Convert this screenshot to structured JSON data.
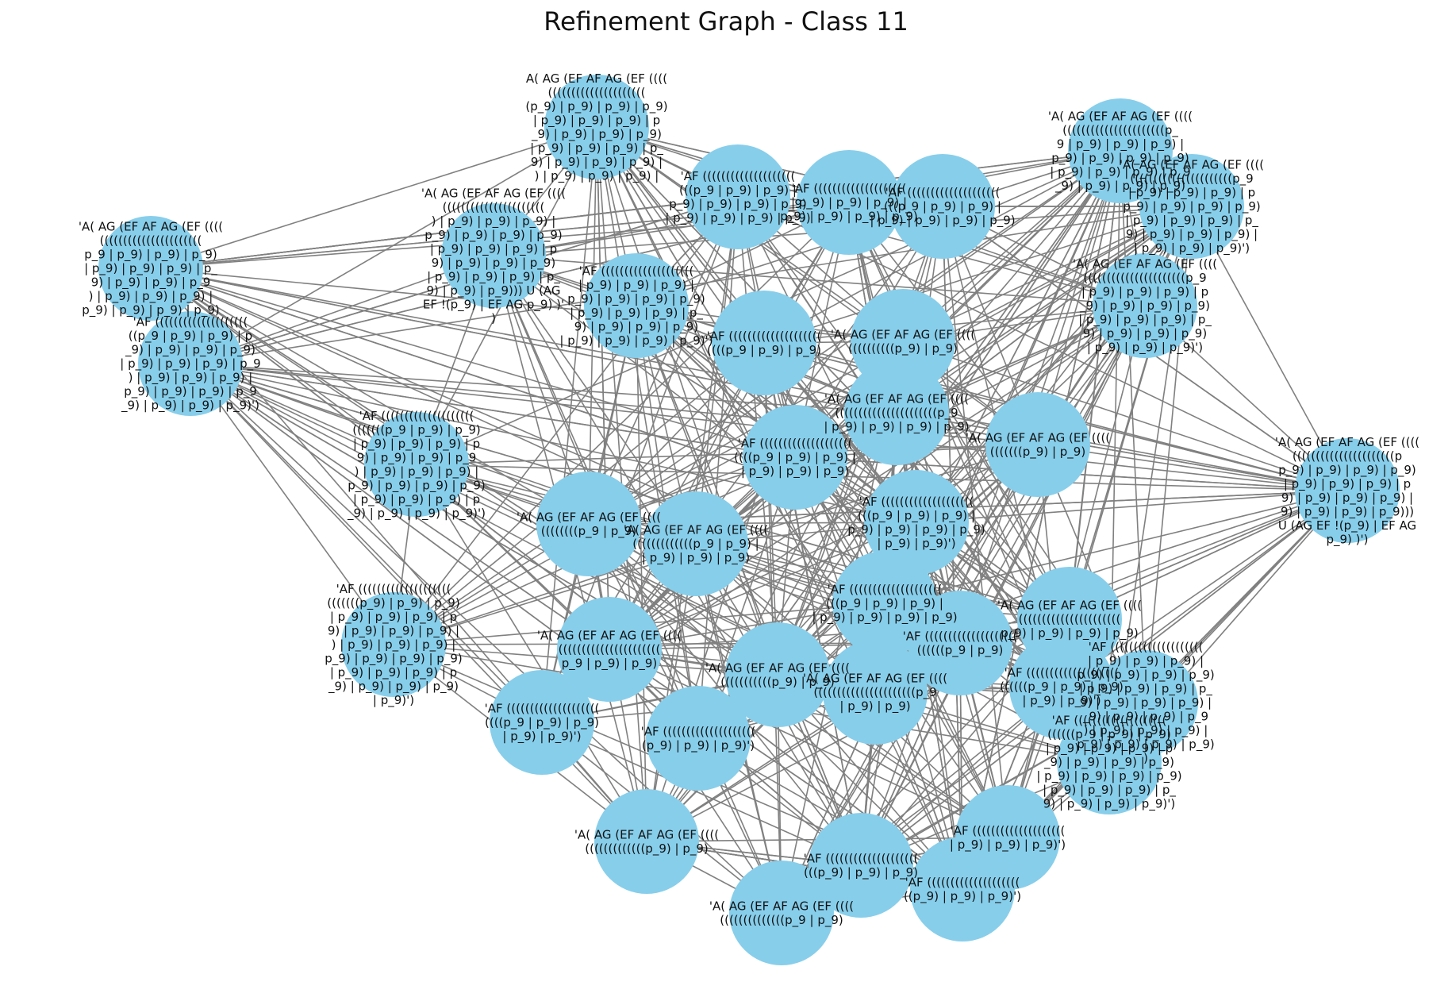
{
  "title": "Refinement Graph - Class 11",
  "colors": {
    "node": "#87ceeb",
    "edge": "#808080",
    "text": "#111111"
  },
  "nodes": [
    {
      "id": "n0",
      "label": "A( AG (EF AF AG (EF ((((\n(((((((((((((((((((((\n(p_9) | p_9) | p_9) | p_9)\n| p_9) | p_9) | p_9) | p\n_9) | p_9) | p_9) | p_9)\n| p_9) | p_9) | p_9) | p_\n9) | p_9) | p_9) | p_9) |\n) | p_9) | p_9) | p_9) |"
    },
    {
      "id": "n1",
      "label": "'A( AG (EF AF AG (EF ((((\n((((((((((((((((((((((p_\n9 | p_9) | p_9) | p_9) |\np_9) | p_9) | p_9) | p_9)\n| p_9) | p_9) | p_9) | p_9\n_9) | p_9) | p_9) | p_9)"
    },
    {
      "id": "n2",
      "label": "'A( AG (EF AF AG (EF ((((\n((((((((((((((((((((((\np_9 | p_9) | p_9) | p_9)\n| p_9) | p_9) | p_9) | p_\n9) | p_9) | p_9) | p_9\n) | p_9) | p_9) | p_9) |\np_9) | p_9) | p_9) | p_9)"
    },
    {
      "id": "n3",
      "label": "'A( AG (EF AF AG (EF ((((\n((((((((((((((((((((((\n) | p_9) | p_9) | p_9) |\np_9) | p_9) | p_9) | p_9)\n| p_9) | p_9) | p_9) | p\n9) | p_9) | p_9) | p_9)\n| p_9) | p_9) | p_9) | p_\n9) | p_9) | p_9))) U (AG\nEF !(p_9) | EF AG p_9) )'\n)"
    },
    {
      "id": "n4",
      "label": "'AF ((((((((((((((((((((\n((p_9 | p_9) | p_9) | p\n_9) | p_9) | p_9) | p_9)\n| p_9) | p_9) | p_9) | p_9\n) | p_9) | p_9) | p_9) |\np_9) | p_9) | p_9) | p_9\n_9) | p_9) | p_9) | p_9)')"
    },
    {
      "id": "n5",
      "label": "'A( AG (EF AF AG (EF ((((\n((((((((((((((((((((((p\np_9) | p_9) | p_9) | p_9)\n| p_9) | p_9) | p_9) | p\n9) | p_9) | p_9) | p_9) |\n9) | p_9) | p_9) | p_9)))\nU (AG EF !(p_9) | EF AG\np_9) )')"
    },
    {
      "id": "n6",
      "label": "'A( AG (EF AF AG (EF ((((\n((((((((((((((((((((((p_9\n| p_9) | p_9) | p_9) | p\np_9) | p_9) | p_9) | p_9)\n| p_9) | p_9) | p_9) | p_\n9) | p_9) | p_9) | p_9) |\n| p_9) | p_9) | p_9)')"
    },
    {
      "id": "n7",
      "label": "'AF ((((((((((((((((((((\n(((((((p_9) | p_9) | p_9)\n| p_9) | p_9) | p_9) | p\n9) | p_9) | p_9) | p_9) |\n) | p_9) | p_9) | p_9) |\np_9) | p_9) | p_9) | p_9)\n| p_9) | p_9) | p_9) | p\n_9) | p_9) | p_9) | p_9)\n| p_9)')"
    },
    {
      "id": "n8",
      "label": "'AF ((((((((((((((((((((\n| p_9) | p_9) | p_9) |\np_9) | p_9) | p_9) | p_9)\n| p_9) | p_9) | p_9) | p_\n9) | p_9) | p_9) | p_9) |\n_9) | p_9) | p_9) | p_9\n) | p_9) | p_9) | p_9) |\np_9) | p_9) | p_9) | p_9)\n)"
    },
    {
      "id": "n9",
      "label": "'AF ((((((((((((((((((((\n(((((((p_9 | p_9) | p_9)\n| p_9) | p_9) | p_9) | p\n9) | p_9) | p_9) | p_9\n) | p_9) | p_9) | p_9) |\np_9) | p_9) | p_9) | p_9)\n| p_9) | p_9) | p_9) | p\n_9) | p_9) | p_9) | p_9)')"
    },
    {
      "id": "n10",
      "label": "'AF ((((((((((((((((((((\n| p_9) | p_9) | p_9) |\np_9) | p_9) | p_9) | p_9)\n| p_9) | p_9) | p_9) | p_\n9) | p_9) | p_9) | p_9)\n| p_9) | p_9) | p_9) | p_9)')"
    },
    {
      "id": "n11",
      "label": "'AF ((((((((((((((((((((\n((((((p_9 | p_9) | p_9)\n| p_9) | p_9) | p_9) | p\n_9) | p_9) | p_9) | p_9)\n| p_9) | p_9) | p_9) | p_9)\n| p_9) | p_9) | p_9) | p_\n9) | p_9) | p_9) | p_9)')"
    },
    {
      "id": "n12",
      "label": "'A( AG (EF AF AG (EF ((((\n((((((((((((((((((((((p_9\n| p_9) | p_9) | p_9) | p\n_9) | p_9) | p_9) | p_9)\n| p_9) | p_9) | p_9) | p_\n9) | p_9) | p_9) | p_9)\n| p_9) | p_9) | p_9)')"
    },
    {
      "id": "n13",
      "label": "'AF ((((((((((((((((((((\n(((p_9 | p_9) | p_9) |\np_9) | p_9) | p_9) | p_9)\n| p_9) | p_9) | p_9) | p_9)"
    },
    {
      "id": "n14",
      "label": "'AF ((((((((((((((((((((\n| p_9) | p_9) | p_9) |\np_9) | p_9) | p_9) | p_9)"
    },
    {
      "id": "n15",
      "label": "'AF ((((((((((((((((((((\n(((p_9 | p_9) | p_9) |\n| p_9) | p_9) | p_9) | p_9)"
    },
    {
      "id": "n16",
      "label": "'A( AG (EF AF AG (EF ((((\n((((((((((((((((((((((p_9\n| p_9) | p_9) | p_9) | p_9)"
    },
    {
      "id": "n17",
      "label": "'AF ((((((((((((((((((((\n((((p_9 | p_9) | p_9) |\n| p_9) | p_9) | p_9)"
    },
    {
      "id": "n18",
      "label": "'A( AG (EF AF AG (EF ((((\n(((((((((((((p_9 | p_9) |\n| p_9) | p_9) | p_9)"
    },
    {
      "id": "n19",
      "label": "'AF ((((((((((((((((((((\n(((p_9 | p_9) | p_9) |\np_9) | p_9) | p_9) | p_9)\n| p_9) | p_9)')"
    },
    {
      "id": "n20",
      "label": "'AF ((((((((((((((((((((\n(((p_9 | p_9) | p_9) |\n| p_9) | p_9) | p_9) | p_9)"
    },
    {
      "id": "n21",
      "label": "'A( AG (EF AF AG (EF ((((\n((((((((((((((((((((((\np_9) | p_9) | p_9) | p_9)"
    },
    {
      "id": "n22",
      "label": "'AF ((((((((((((((((((((\n((((((p_9 | p_9) | p_9)\n| p_9) | p_9)')"
    },
    {
      "id": "n23",
      "label": "'A( AG (EF AF AG (EF ((((\n((((((((((((((((((((((\np_9 | p_9) | p_9)"
    },
    {
      "id": "n24",
      "label": "'AF ((((((((((((((((((((\n((((p_9 | p_9) | p_9)\n| p_9) | p_9)')"
    },
    {
      "id": "n25",
      "label": "'A( AG (EF AF AG (EF ((((\n((((((((((((((((((((((p_9\n| p_9) | p_9)"
    },
    {
      "id": "n26",
      "label": "'AF ((((((((((((((((((((\n(((p_9) | p_9) | p_9)"
    },
    {
      "id": "n27",
      "label": "'A( AG (EF AF AG (EF ((((\n((((((((((((((p_9 | p_9)"
    },
    {
      "id": "n28",
      "label": "'AF ((((((((((((((((((((\n((p_9) | p_9) | p_9)')"
    },
    {
      "id": "n29",
      "label": "'A( AG (EF AF AG (EF ((((\n(((((((((((((p_9) | p_9)"
    },
    {
      "id": "n30",
      "label": "'AF ((((((((((((((((((((\n| p_9) | p_9) | p_9)')"
    },
    {
      "id": "n31",
      "label": "'A( AG (EF AF AG (EF ((((\n((((((((((p_9) | p_9)"
    },
    {
      "id": "n32",
      "label": "'AF ((((((((((((((((((((\n((((p_9 | p_9) | p_9)"
    },
    {
      "id": "n33",
      "label": "'A( AG (EF AF AG (EF ((((\n(((((((((((p_9) | p_9)"
    },
    {
      "id": "n34",
      "label": "'AF ((((((((((((((((((((\n(p_9) | p_9) | p_9)')"
    },
    {
      "id": "n35",
      "label": "'A( AG (EF AF AG (EF ((((\n((((((((p_9 | p_9)"
    },
    {
      "id": "n36",
      "label": "'AF ((((((((((((((((((((\n((((((p_9 | p_9)"
    },
    {
      "id": "n37",
      "label": "'A( AG (EF AF AG (EF ((((\n(((((((p_9) | p_9)"
    }
  ]
}
